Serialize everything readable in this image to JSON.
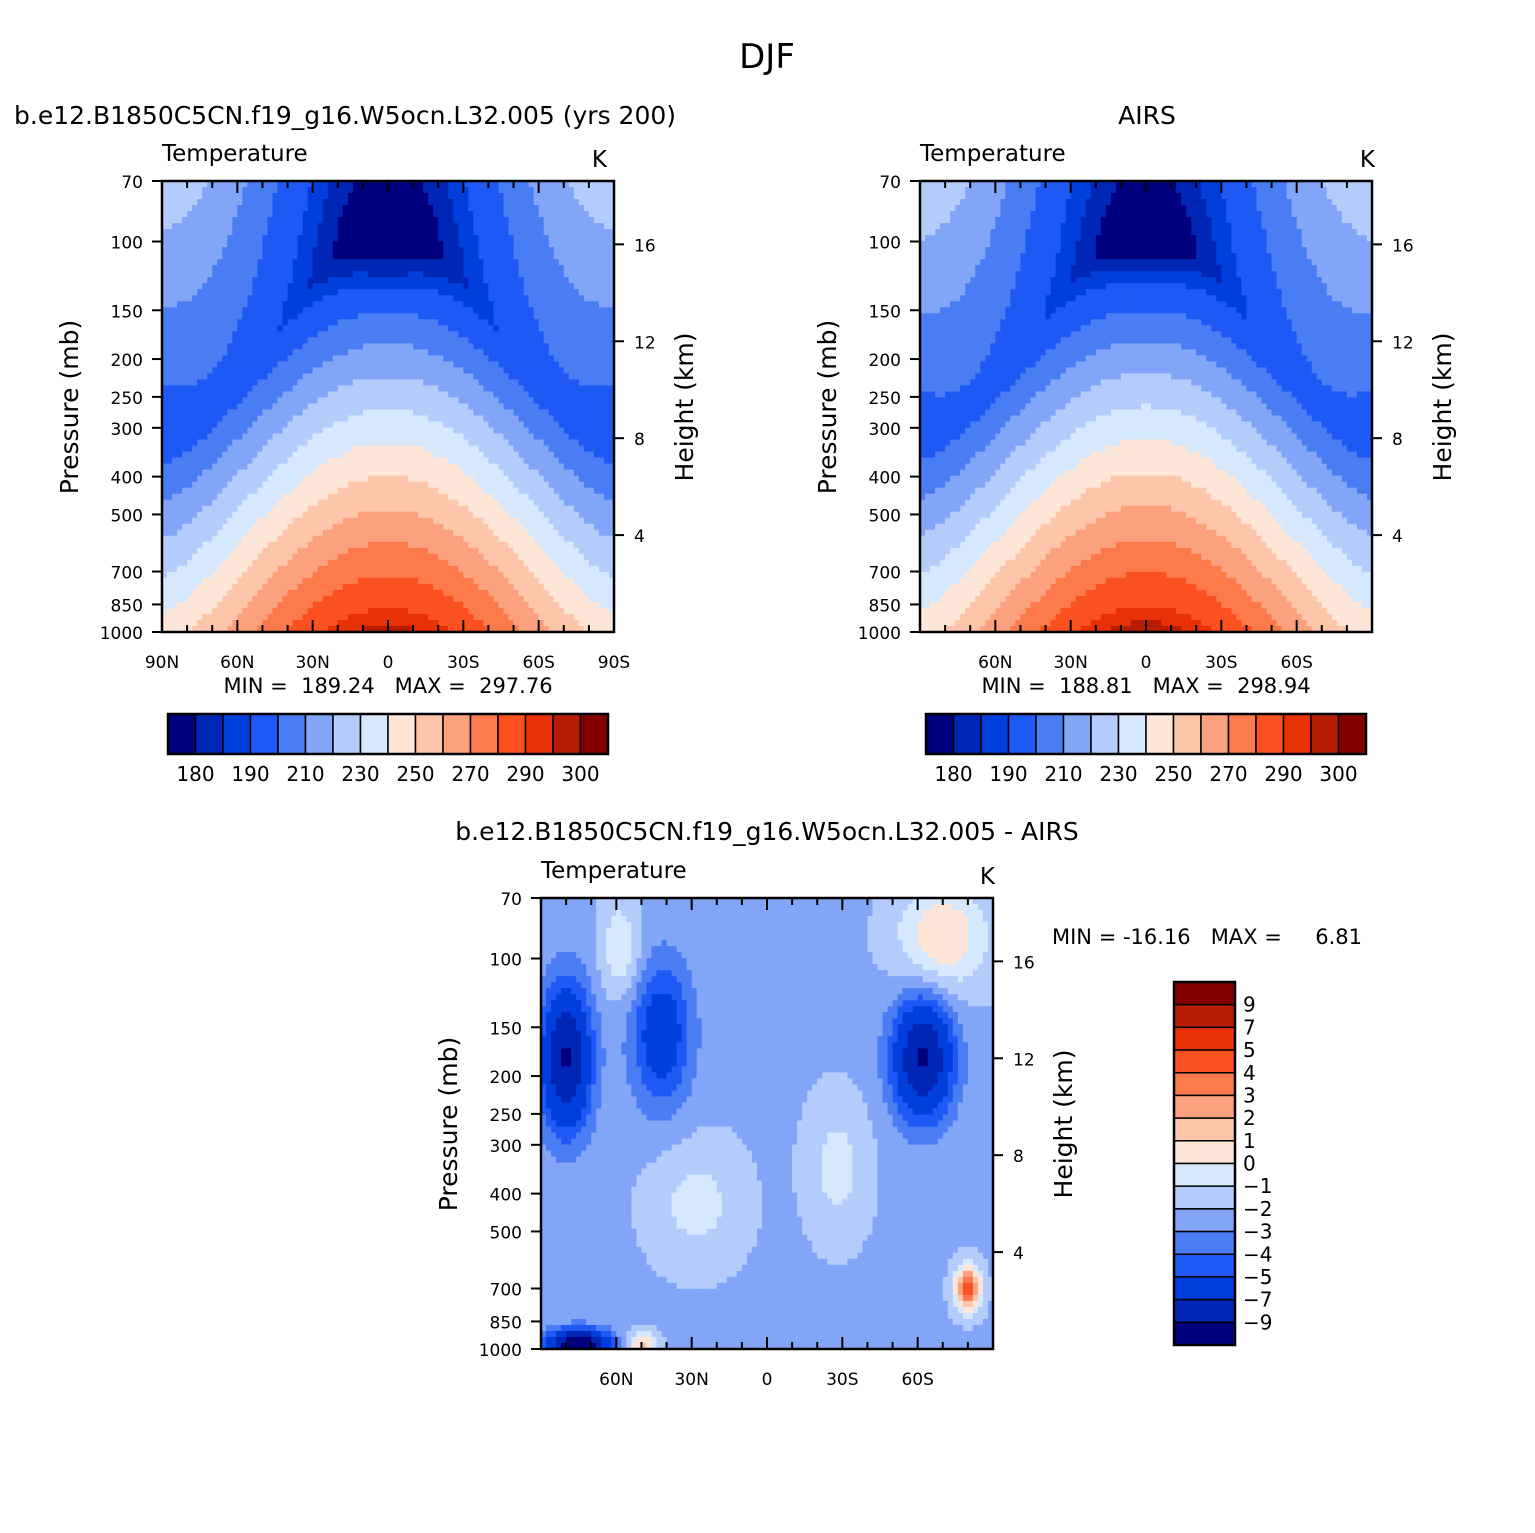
{
  "figure": {
    "title": "DJF"
  },
  "chart_data": [
    {
      "type": "heatmap",
      "panel": "model",
      "title": "b.e12.B1850C5CN.f19_g16.W5ocn.L32.005 (yrs 200)",
      "subtitle_left": "Temperature",
      "subtitle_right": "K",
      "ylabel": "Pressure (mb)",
      "ylabel_right": "Height (km)",
      "y_ticks": [
        70,
        100,
        150,
        200,
        250,
        300,
        400,
        500,
        700,
        850,
        1000
      ],
      "y_right_ticks": [
        16,
        12,
        8,
        4
      ],
      "x_ticks": [
        "90N",
        "60N",
        "30N",
        "0",
        "30S",
        "60S",
        "90S"
      ],
      "y_scale": "log-pressure",
      "stats": "MIN =  189.24   MAX =  297.76",
      "colorbar": {
        "orientation": "horizontal",
        "levels": [
          180,
          190,
          210,
          230,
          250,
          270,
          290,
          300
        ],
        "colors": [
          "#00007f",
          "#0026b6",
          "#003fdc",
          "#1f59f5",
          "#4a7df3",
          "#82a5f8",
          "#b4ccfb",
          "#d6e8fd",
          "#fde6d8",
          "#fdc6aa",
          "#fca17e",
          "#fc7a4b",
          "#fb5120",
          "#e93107",
          "#b81d04",
          "#820000"
        ]
      }
    },
    {
      "type": "heatmap",
      "panel": "observations",
      "title": "AIRS",
      "subtitle_left": "Temperature",
      "subtitle_right": "K",
      "ylabel": "Pressure (mb)",
      "ylabel_right": "Height (km)",
      "y_ticks": [
        70,
        100,
        150,
        200,
        250,
        300,
        400,
        500,
        700,
        850,
        1000
      ],
      "y_right_ticks": [
        16,
        12,
        8,
        4
      ],
      "x_ticks": [
        "60N",
        "30N",
        "0",
        "30S",
        "60S"
      ],
      "y_scale": "log-pressure",
      "stats": "MIN =  188.81   MAX =  298.94",
      "colorbar": {
        "orientation": "horizontal",
        "levels": [
          180,
          190,
          210,
          230,
          250,
          270,
          290,
          300
        ],
        "colors": [
          "#00007f",
          "#0026b6",
          "#003fdc",
          "#1f59f5",
          "#4a7df3",
          "#82a5f8",
          "#b4ccfb",
          "#d6e8fd",
          "#fde6d8",
          "#fdc6aa",
          "#fca17e",
          "#fc7a4b",
          "#fb5120",
          "#e93107",
          "#b81d04",
          "#820000"
        ]
      }
    },
    {
      "type": "heatmap",
      "panel": "difference",
      "title": "b.e12.B1850C5CN.f19_g16.W5ocn.L32.005 - AIRS",
      "subtitle_left": "Temperature",
      "subtitle_right": "K",
      "ylabel": "Pressure (mb)",
      "ylabel_right": "Height (km)",
      "y_ticks": [
        70,
        100,
        150,
        200,
        250,
        300,
        400,
        500,
        700,
        850,
        1000
      ],
      "y_right_ticks": [
        16,
        12,
        8,
        4
      ],
      "x_ticks": [
        "60N",
        "30N",
        "0",
        "30S",
        "60S"
      ],
      "y_scale": "log-pressure",
      "stats": "MIN = -16.16   MAX =     6.81",
      "colorbar": {
        "orientation": "vertical",
        "levels": [
          9,
          7,
          5,
          4,
          3,
          2,
          1,
          0,
          -1,
          -2,
          -3,
          -4,
          -5,
          -7,
          -9
        ],
        "colors": [
          "#820000",
          "#b81d04",
          "#e93107",
          "#fb5120",
          "#fc7a4b",
          "#fca17e",
          "#fdc6aa",
          "#fde6d8",
          "#d6e8fd",
          "#b4ccfb",
          "#82a5f8",
          "#4a7df3",
          "#1f59f5",
          "#003fdc",
          "#0026b6",
          "#00007f"
        ]
      }
    }
  ]
}
